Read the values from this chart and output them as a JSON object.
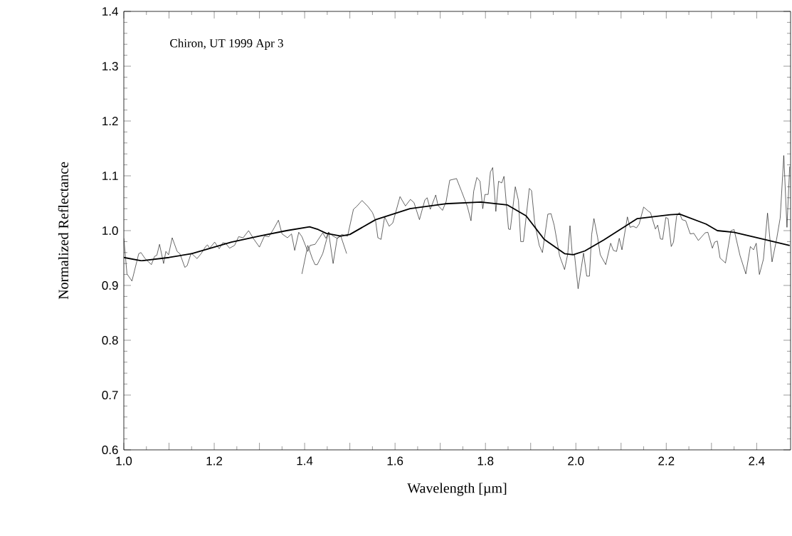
{
  "chart_data": {
    "type": "line",
    "xlabel": "Wavelength [µm]",
    "ylabel": "Normalized Reflectance",
    "annotations": [
      "Chiron, UT 1999 Apr 3"
    ],
    "xlim": [
      1.0,
      2.475
    ],
    "ylim": [
      0.6,
      1.4
    ],
    "xticks": [
      {
        "value": 1.0,
        "label": "1.0"
      },
      {
        "value": 1.1,
        "label": null
      },
      {
        "value": 1.2,
        "label": "1.2"
      },
      {
        "value": 1.3,
        "label": null
      },
      {
        "value": 1.4,
        "label": "1.4"
      },
      {
        "value": 1.5,
        "label": null
      },
      {
        "value": 1.6,
        "label": "1.6"
      },
      {
        "value": 1.7,
        "label": null
      },
      {
        "value": 1.8,
        "label": "1.8"
      },
      {
        "value": 1.9,
        "label": null
      },
      {
        "value": 2.0,
        "label": "2.0"
      },
      {
        "value": 2.1,
        "label": null
      },
      {
        "value": 2.2,
        "label": "2.2"
      },
      {
        "value": 2.3,
        "label": null
      },
      {
        "value": 2.4,
        "label": "2.4"
      }
    ],
    "yticks": [
      {
        "value": 0.6,
        "label": "0.6"
      },
      {
        "value": 0.7,
        "label": "0.7"
      },
      {
        "value": 0.8,
        "label": "0.8"
      },
      {
        "value": 0.9,
        "label": "0.9"
      },
      {
        "value": 1.0,
        "label": "1.0"
      },
      {
        "value": 1.1,
        "label": "1.1"
      },
      {
        "value": 1.2,
        "label": "1.2"
      },
      {
        "value": 1.3,
        "label": "1.3"
      },
      {
        "value": 1.4,
        "label": "1.4"
      }
    ],
    "marker": "none",
    "line_style": "solid",
    "series": [
      {
        "color": "#000000",
        "x": [
          1.0,
          1.007,
          1.018,
          1.033,
          1.038,
          1.047,
          1.061,
          1.068,
          1.073,
          1.079,
          1.088,
          1.093,
          1.099,
          1.107,
          1.118,
          1.124,
          1.135,
          1.14,
          1.149,
          1.162,
          1.171,
          1.181,
          1.185,
          1.19,
          1.201,
          1.211,
          1.219,
          1.225,
          1.234,
          1.245,
          1.254,
          1.264,
          1.276,
          1.288,
          1.3,
          1.311,
          1.321,
          1.332,
          1.342,
          1.35,
          1.362,
          1.371,
          1.378,
          1.387,
          1.394,
          1.407,
          1.412,
          1.423,
          1.44,
          1.447,
          1.453,
          1.463,
          1.472,
          1.48,
          1.493
        ],
        "values": [
          0.986,
          0.921,
          0.908,
          0.958,
          0.96,
          0.949,
          0.938,
          0.953,
          0.955,
          0.975,
          0.94,
          0.962,
          0.956,
          0.987,
          0.962,
          0.958,
          0.933,
          0.936,
          0.959,
          0.949,
          0.958,
          0.971,
          0.974,
          0.968,
          0.979,
          0.967,
          0.978,
          0.977,
          0.968,
          0.973,
          0.989,
          0.987,
          1.0,
          0.984,
          0.97,
          0.99,
          0.989,
          1.004,
          1.019,
          0.994,
          0.987,
          0.994,
          0.964,
          0.997,
          0.989,
          0.962,
          0.973,
          0.975,
          0.996,
          0.986,
          0.997,
          0.99,
          0.986,
          0.99,
          0.958
        ]
      },
      {
        "color": "#000000",
        "x": [
          1.394,
          1.407,
          1.417,
          1.423,
          1.428,
          1.44,
          1.453,
          1.463,
          1.472,
          1.482,
          1.495,
          1.508,
          1.515,
          1.527,
          1.54,
          1.55,
          1.557,
          1.562,
          1.569,
          1.577,
          1.587,
          1.595,
          1.611,
          1.623,
          1.634,
          1.642,
          1.654,
          1.666,
          1.671,
          1.678,
          1.69,
          1.695,
          1.705,
          1.713,
          1.721,
          1.736,
          1.747,
          1.76,
          1.768,
          1.774,
          1.781,
          1.788,
          1.794,
          1.799,
          1.806,
          1.811,
          1.816,
          1.823,
          1.829,
          1.836,
          1.841,
          1.851,
          1.855,
          1.866,
          1.873,
          1.878,
          1.884,
          1.897,
          1.902,
          1.909,
          1.919,
          1.926,
          1.938,
          1.945,
          1.952,
          1.964,
          1.975,
          1.982,
          1.987,
          1.992,
          1.997,
          2.005,
          2.012,
          2.017,
          2.024,
          2.03,
          2.035,
          2.04,
          2.048,
          2.054,
          2.066,
          2.077,
          2.083,
          2.09,
          2.096,
          2.102,
          2.114,
          2.12,
          2.127,
          2.134,
          2.14,
          2.15,
          2.161,
          2.165,
          2.176,
          2.181,
          2.187,
          2.192,
          2.199,
          2.204,
          2.211,
          2.216,
          2.223,
          2.229,
          2.235,
          2.243,
          2.253,
          2.261,
          2.271,
          2.286,
          2.292,
          2.302,
          2.307,
          2.313,
          2.319,
          2.331,
          2.343,
          2.35,
          2.363,
          2.376,
          2.386,
          2.393,
          2.399,
          2.406,
          2.415,
          2.424,
          2.434,
          2.444,
          2.452,
          2.46,
          2.467,
          2.473
        ],
        "values": [
          0.921,
          0.973,
          0.949,
          0.938,
          0.938,
          0.958,
          0.997,
          0.94,
          0.986,
          0.993,
          0.99,
          1.039,
          1.044,
          1.055,
          1.044,
          1.033,
          1.018,
          0.987,
          0.984,
          1.025,
          1.008,
          1.014,
          1.062,
          1.045,
          1.057,
          1.051,
          1.02,
          1.056,
          1.06,
          1.039,
          1.065,
          1.046,
          1.037,
          1.053,
          1.092,
          1.095,
          1.072,
          1.044,
          1.018,
          1.072,
          1.097,
          1.09,
          1.04,
          1.066,
          1.066,
          1.107,
          1.115,
          1.035,
          1.09,
          1.087,
          1.099,
          1.003,
          1.002,
          1.08,
          1.055,
          0.98,
          0.98,
          1.077,
          1.073,
          1.014,
          0.973,
          0.96,
          1.03,
          1.031,
          1.01,
          0.954,
          0.929,
          0.957,
          1.009,
          0.957,
          0.956,
          0.894,
          0.932,
          0.959,
          0.917,
          0.917,
          0.993,
          1.022,
          0.988,
          0.956,
          0.938,
          0.977,
          0.964,
          0.962,
          0.986,
          0.965,
          1.025,
          1.006,
          1.008,
          1.005,
          1.012,
          1.043,
          1.035,
          1.033,
          1.003,
          1.01,
          0.985,
          0.984,
          1.024,
          1.022,
          0.971,
          0.979,
          1.027,
          1.033,
          1.02,
          1.018,
          0.994,
          0.995,
          0.982,
          0.996,
          0.997,
          0.968,
          0.979,
          0.981,
          0.95,
          0.941,
          1.0,
          1.002,
          0.955,
          0.921,
          0.971,
          0.965,
          0.977,
          0.92,
          0.948,
          1.032,
          0.943,
          0.984,
          1.023,
          1.137,
          1.006,
          1.117
        ]
      },
      {
        "color": "#000000",
        "x": [
          1.0,
          1.039,
          1.1,
          1.15,
          1.238,
          1.3,
          1.36,
          1.411,
          1.43,
          1.448,
          1.48,
          1.5,
          1.557,
          1.633,
          1.711,
          1.79,
          1.848,
          1.89,
          1.93,
          1.975,
          1.994,
          2.02,
          2.062,
          2.136,
          2.209,
          2.23,
          2.288,
          2.313,
          2.35,
          2.402,
          2.473
        ],
        "values": [
          0.951,
          0.945,
          0.951,
          0.958,
          0.979,
          0.99,
          1.0,
          1.007,
          1.002,
          0.995,
          0.99,
          0.993,
          1.02,
          1.04,
          1.049,
          1.052,
          1.047,
          1.027,
          0.984,
          0.958,
          0.956,
          0.963,
          0.983,
          1.022,
          1.029,
          1.03,
          1.012,
          1.0,
          0.997,
          0.987,
          0.973
        ]
      }
    ]
  }
}
